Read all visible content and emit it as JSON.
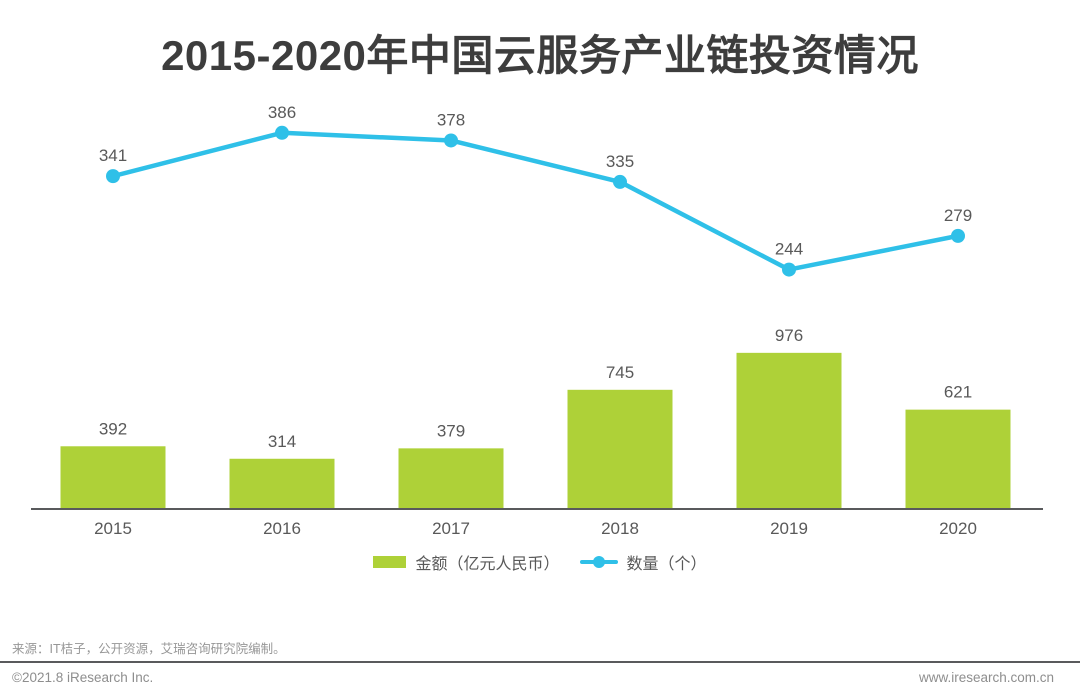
{
  "page": {
    "title": "2015-2020年中国云服务产业链投资情况",
    "source_note": "来源：IT桔子，公开资源，艾瑞咨询研究院编制。",
    "copyright": "©2021.8 iResearch Inc.",
    "website": "www.iresearch.com.cn"
  },
  "colors": {
    "bar": "#aed138",
    "line": "#2fc0e8",
    "axis": "#595a5c",
    "label": "#595959",
    "title": "#3d3d3d"
  },
  "chart_data": {
    "type": "bar+line combo",
    "title": "2015-2020年中国云服务产业链投资情况",
    "categories": [
      "2015",
      "2016",
      "2017",
      "2018",
      "2019",
      "2020"
    ],
    "series": [
      {
        "name": "金额（亿元人民币）",
        "type": "bar",
        "values": [
          392,
          314,
          379,
          745,
          976,
          621
        ],
        "color": "#aed138",
        "axis_range": [
          0,
          1000
        ]
      },
      {
        "name": "数量（个）",
        "type": "line",
        "values": [
          341,
          386,
          378,
          335,
          244,
          279
        ],
        "color": "#2fc0e8",
        "axis_range": [
          200,
          420
        ]
      }
    ],
    "legend": [
      {
        "label": "金额（亿元人民币）",
        "marker": "bar-swatch"
      },
      {
        "label": "数量（个）",
        "marker": "line-dot"
      }
    ],
    "grid": false,
    "data_labels": true,
    "legend_position": "bottom-center",
    "y_axis_visible": false,
    "x_axis_line": true
  }
}
